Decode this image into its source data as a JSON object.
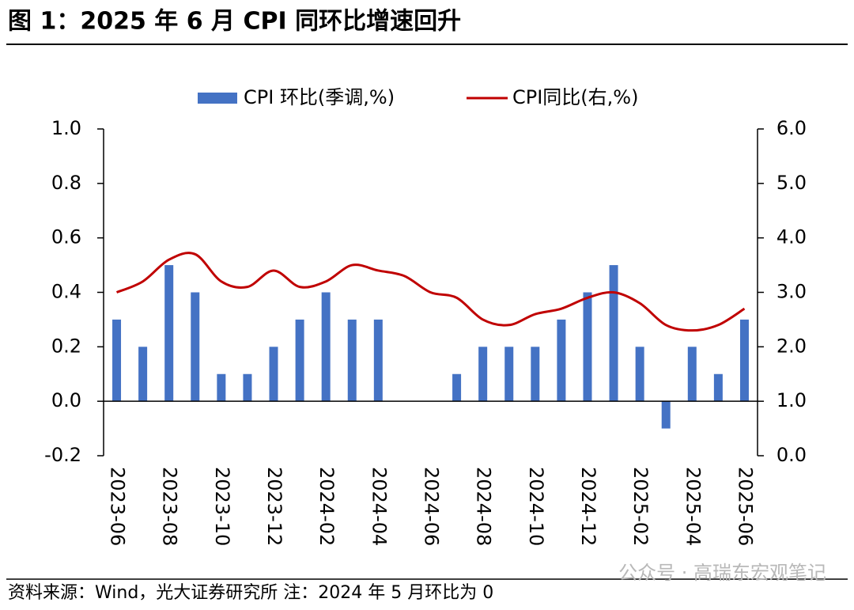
{
  "chart_data": {
    "type": "bar+line",
    "title": "图 1：2025 年 6 月 CPI 同环比增速回升",
    "source": "资料来源：Wind，光大证券研究所    注：2024 年 5 月环比为 0",
    "watermark": "公众号 · 高瑞东宏观笔记",
    "categories": [
      "2023-06",
      null,
      "2023-08",
      null,
      "2023-10",
      null,
      "2023-12",
      null,
      "2024-02",
      null,
      "2024-04",
      null,
      "2024-06",
      null,
      "2024-08",
      null,
      "2024-10",
      null,
      "2024-12",
      null,
      "2025-02",
      null,
      "2025-04",
      null,
      "2025-06"
    ],
    "series": [
      {
        "name": "CPI 环比(季调,%)",
        "type": "bar",
        "color": "#4472c4",
        "axis": "y",
        "values": [
          0.3,
          0.2,
          0.5,
          0.4,
          0.1,
          0.1,
          0.2,
          0.3,
          0.4,
          0.3,
          0.3,
          0,
          0,
          0.1,
          0.2,
          0.2,
          0.2,
          0.3,
          0.4,
          0.5,
          0.2,
          -0.1,
          0.2,
          0.1,
          0.3
        ]
      },
      {
        "name": "CPI同比(右,%)",
        "type": "line",
        "color": "#c00000",
        "axis": "y2",
        "values": [
          3.0,
          3.2,
          3.6,
          3.7,
          3.2,
          3.1,
          3.4,
          3.1,
          3.2,
          3.5,
          3.4,
          3.3,
          3.0,
          2.9,
          2.5,
          2.4,
          2.6,
          2.7,
          2.9,
          3.0,
          2.8,
          2.4,
          2.3,
          2.4,
          2.7
        ]
      }
    ],
    "ylim": [
      -0.2,
      1.0
    ],
    "yticks": [
      {
        "value": -0.2,
        "label": "-0.2"
      },
      {
        "value": 0,
        "label": "0.0"
      },
      {
        "value": 0.2,
        "label": "0.2"
      },
      {
        "value": 0.4,
        "label": "0.4"
      },
      {
        "value": 0.6,
        "label": "0.6"
      },
      {
        "value": 0.8,
        "label": "0.8"
      },
      {
        "value": 1.0,
        "label": "1.0"
      }
    ],
    "y2lim": [
      0,
      6
    ],
    "y2ticks": [
      {
        "value": 0,
        "label": "0.0"
      },
      {
        "value": 1,
        "label": "1.0"
      },
      {
        "value": 2,
        "label": "2.0"
      },
      {
        "value": 3,
        "label": "3.0"
      },
      {
        "value": 4,
        "label": "4.0"
      },
      {
        "value": 5,
        "label": "5.0"
      },
      {
        "value": 6,
        "label": "6.0"
      }
    ],
    "legend": "top"
  }
}
